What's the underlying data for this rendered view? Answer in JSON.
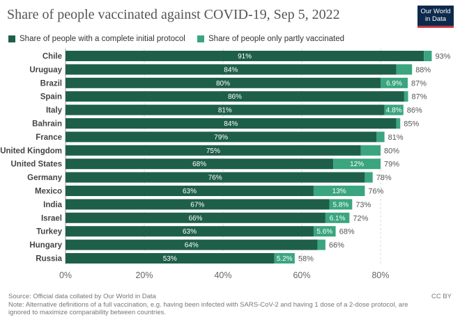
{
  "header": {
    "title": "Share of people vaccinated against COVID-19, Sep 5, 2022",
    "logo_line1": "Our World",
    "logo_line2": "in Data"
  },
  "colors": {
    "complete": "#1e5f4a",
    "partial": "#3aa57f",
    "grid": "#d9d9d9",
    "logo_bg": "#0d2a4d",
    "logo_accent": "#c4363e"
  },
  "footer": {
    "source": "Source: Official data collated by Our World in Data",
    "license": "CC BY",
    "note": "Note: Alternative definitions of a full vaccination, e.g. having been infected with SARS-CoV-2 and having 1 dose of a 2-dose protocol, are ignored to maximize comparability between countries."
  },
  "chart_data": {
    "type": "bar",
    "orientation": "horizontal",
    "stacked": true,
    "title": "Share of people vaccinated against COVID-19, Sep 5, 2022",
    "xlim": [
      0,
      100
    ],
    "x_ticks": [
      "0%",
      "20%",
      "40%",
      "60%",
      "80%"
    ],
    "x_tick_values": [
      0,
      20,
      40,
      60,
      80
    ],
    "grid": true,
    "legend_position": "top-left",
    "categories": [
      "Chile",
      "Uruguay",
      "Brazil",
      "Spain",
      "Italy",
      "Bahrain",
      "France",
      "United Kingdom",
      "United States",
      "Germany",
      "Mexico",
      "India",
      "Israel",
      "Turkey",
      "Hungary",
      "Russia"
    ],
    "series": [
      {
        "name": "Share of people with a complete initial protocol",
        "values": [
          91,
          84,
          80,
          86,
          81,
          84,
          79,
          75,
          68,
          76,
          63,
          67,
          66,
          63,
          64,
          53
        ],
        "labels": [
          "91%",
          "84%",
          "80%",
          "86%",
          "81%",
          "84%",
          "79%",
          "75%",
          "68%",
          "76%",
          "63%",
          "67%",
          "66%",
          "63%",
          "64%",
          "53%"
        ]
      },
      {
        "name": "Share of people only partly vaccinated",
        "values": [
          2,
          4,
          6.9,
          1,
          4.8,
          1,
          2,
          5,
          12,
          2,
          13,
          5.8,
          6.1,
          5.6,
          2,
          5.2
        ],
        "labels": [
          "",
          "",
          "6.9%",
          "",
          "4.8%",
          "",
          "",
          "",
          "12%",
          "",
          "13%",
          "5.8%",
          "6.1%",
          "5.6%",
          "",
          "5.2%"
        ]
      }
    ],
    "totals": [
      "93%",
      "88%",
      "87%",
      "87%",
      "86%",
      "85%",
      "81%",
      "80%",
      "79%",
      "78%",
      "76%",
      "73%",
      "72%",
      "68%",
      "66%",
      "58%"
    ]
  }
}
